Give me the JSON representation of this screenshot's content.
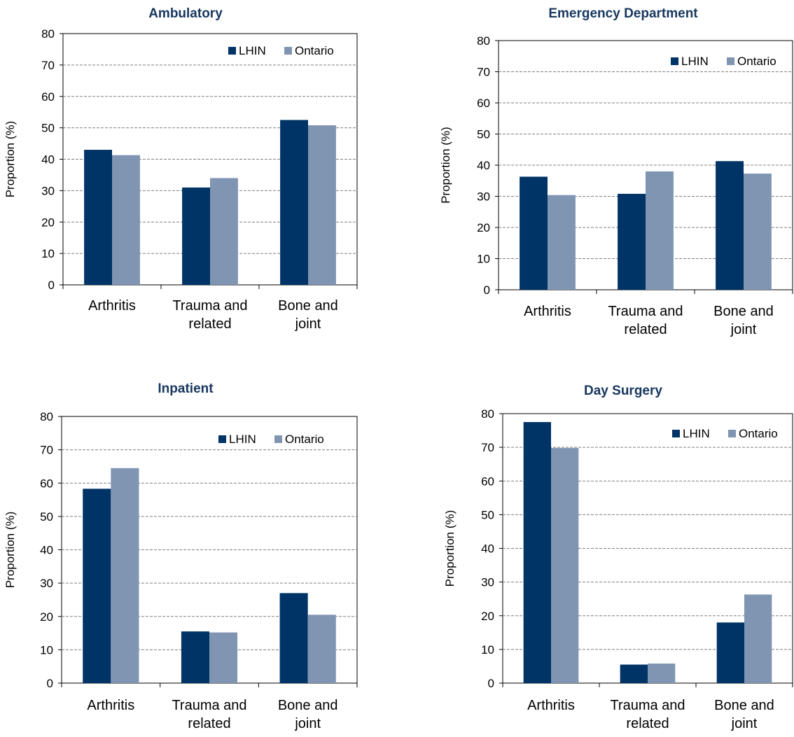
{
  "colors": {
    "lhin": "#003366",
    "ontario": "#7f95b2",
    "grid": "#808080",
    "title": "#17375e"
  },
  "chart_data": [
    {
      "type": "bar",
      "title": "Ambulatory",
      "ylabel": "Proportion (%)",
      "xlabel": "",
      "ylim": [
        0,
        80
      ],
      "yticks": [
        0,
        10,
        20,
        30,
        40,
        50,
        60,
        70,
        80
      ],
      "grid": true,
      "legend_position": "top-right",
      "categories": [
        [
          "Arthritis"
        ],
        [
          "Trauma and",
          "related"
        ],
        [
          "Bone and",
          "joint"
        ]
      ],
      "series": [
        {
          "name": "LHIN",
          "values": [
            43,
            31,
            52.5
          ]
        },
        {
          "name": "Ontario",
          "values": [
            41.3,
            34,
            50.8
          ]
        }
      ]
    },
    {
      "type": "bar",
      "title": "Emergency Department",
      "ylabel": "Proportion (%)",
      "xlabel": "",
      "ylim": [
        0,
        80
      ],
      "yticks": [
        0,
        10,
        20,
        30,
        40,
        50,
        60,
        70,
        80
      ],
      "grid": true,
      "legend_position": "top-right",
      "categories": [
        [
          "Arthritis"
        ],
        [
          "Trauma and",
          "related"
        ],
        [
          "Bone and",
          "joint"
        ]
      ],
      "series": [
        {
          "name": "LHIN",
          "values": [
            36.3,
            30.8,
            41.3
          ]
        },
        {
          "name": "Ontario",
          "values": [
            30.4,
            38,
            37.3
          ]
        }
      ]
    },
    {
      "type": "bar",
      "title": "Inpatient",
      "ylabel": "Proportion (%)",
      "xlabel": "",
      "ylim": [
        0,
        80
      ],
      "yticks": [
        0,
        10,
        20,
        30,
        40,
        50,
        60,
        70,
        80
      ],
      "grid": true,
      "legend_position": "top-right",
      "categories": [
        [
          "Arthritis"
        ],
        [
          "Trauma and",
          "related"
        ],
        [
          "Bone and",
          "joint"
        ]
      ],
      "series": [
        {
          "name": "LHIN",
          "values": [
            58.3,
            15.5,
            27
          ]
        },
        {
          "name": "Ontario",
          "values": [
            64.5,
            15.2,
            20.5
          ]
        }
      ]
    },
    {
      "type": "bar",
      "title": "Day Surgery",
      "ylabel": "Proportion (%)",
      "xlabel": "",
      "ylim": [
        0,
        80
      ],
      "yticks": [
        0,
        10,
        20,
        30,
        40,
        50,
        60,
        70,
        80
      ],
      "grid": true,
      "legend_position": "top-right",
      "categories": [
        [
          "Arthritis"
        ],
        [
          "Trauma and",
          "related"
        ],
        [
          "Bone and",
          "joint"
        ]
      ],
      "series": [
        {
          "name": "LHIN",
          "values": [
            77.5,
            5.5,
            18
          ]
        },
        {
          "name": "Ontario",
          "values": [
            69.8,
            5.8,
            26.3
          ]
        }
      ]
    }
  ]
}
